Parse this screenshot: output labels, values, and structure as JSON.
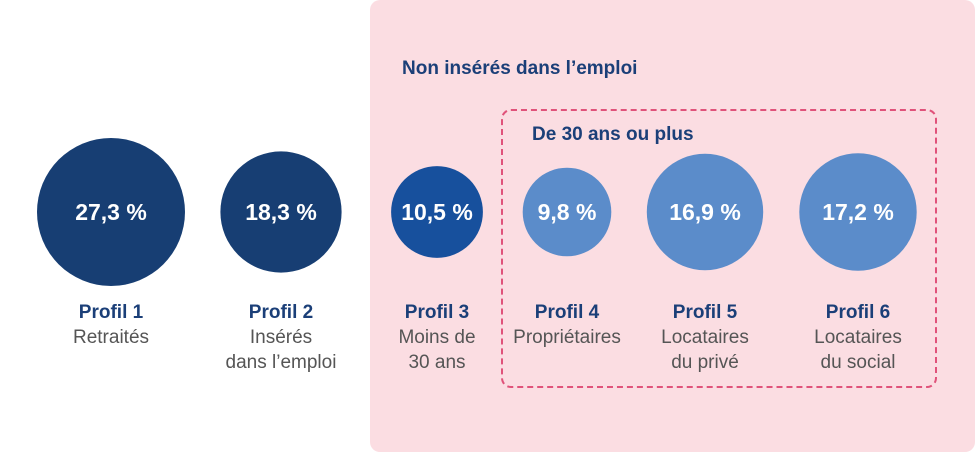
{
  "group": {
    "title": "Non insérés dans l’emploi",
    "subgroup_title": "De 30 ans ou plus"
  },
  "colors": {
    "dark": "#173e73",
    "medium": "#17509d",
    "light": "#5b8cca",
    "panel": "#fbdde2",
    "dashed_border": "#e0527a"
  },
  "chart_data": {
    "type": "bubble",
    "unit": "%",
    "items": [
      {
        "profile": "Profil 1",
        "label_lines": [
          "Retraités"
        ],
        "value": 27.3,
        "value_label": "27,3 %",
        "color": "#173e73"
      },
      {
        "profile": "Profil 2",
        "label_lines": [
          "Insérés",
          "dans l’emploi"
        ],
        "value": 18.3,
        "value_label": "18,3 %",
        "color": "#173e73"
      },
      {
        "profile": "Profil 3",
        "label_lines": [
          "Moins de",
          "30 ans"
        ],
        "value": 10.5,
        "value_label": "10,5 %",
        "color": "#17509d"
      },
      {
        "profile": "Profil 4",
        "label_lines": [
          "Propriétaires"
        ],
        "value": 9.8,
        "value_label": "9,8 %",
        "color": "#5b8cca"
      },
      {
        "profile": "Profil 5",
        "label_lines": [
          "Locataires",
          "du privé"
        ],
        "value": 16.9,
        "value_label": "16,9 %",
        "color": "#5b8cca"
      },
      {
        "profile": "Profil 6",
        "label_lines": [
          "Locataires",
          "du social"
        ],
        "value": 17.2,
        "value_label": "17,2 %",
        "color": "#5b8cca"
      }
    ]
  }
}
